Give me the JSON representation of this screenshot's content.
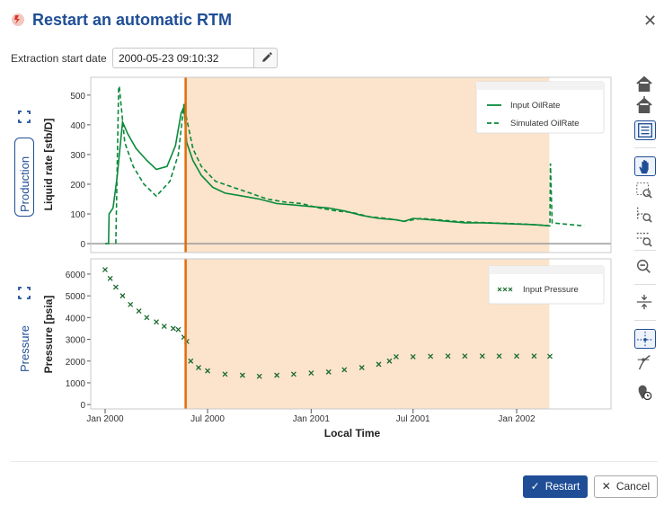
{
  "dialog": {
    "title": "Restart an automatic RTM",
    "close_icon": "close-icon",
    "logo_icon": "rtm-logo-icon"
  },
  "extraction": {
    "label": "Extraction start date",
    "value": "2000-05-23 09:10:32",
    "edit_icon": "pencil-icon"
  },
  "panels": {
    "production_label": "Production",
    "pressure_label": "Pressure"
  },
  "toolbar": [
    {
      "icon": "home-icon"
    },
    {
      "icon": "home-alt-icon"
    },
    {
      "icon": "legend-icon",
      "active": true
    },
    {
      "icon": "pan-hand-icon",
      "active": true
    },
    {
      "icon": "zoom-box-icon"
    },
    {
      "icon": "zoom-x-icon"
    },
    {
      "icon": "zoom-y-icon"
    },
    {
      "icon": "zoom-out-icon"
    },
    {
      "icon": "vertical-spread-icon"
    },
    {
      "icon": "crosshair-icon",
      "active": true
    },
    {
      "icon": "tangent-icon"
    },
    {
      "icon": "pin-clock-icon"
    }
  ],
  "footer": {
    "restart_label": "Restart",
    "cancel_label": "Cancel"
  },
  "colors": {
    "accent": "#1f4e96",
    "series_green": "#0a8a3a",
    "series_dark_green": "#1a6b2e",
    "marker_orange": "#e36c0a",
    "shade": "#fbe3cc"
  },
  "chart_data": [
    {
      "type": "line",
      "ylabel": "Liquid rate [stb/D]",
      "ylim": [
        -30,
        560
      ],
      "yticks": [
        "0",
        "100",
        "200",
        "300",
        "400",
        "500"
      ],
      "ytick_values": [
        0,
        100,
        200,
        300,
        400,
        500
      ],
      "legend": "top-right",
      "series": [
        {
          "name": "Input OilRate",
          "style": "solid",
          "x": [
            "2000-01-01",
            "2000-01-07",
            "2000-01-08",
            "2000-01-15",
            "2000-01-22",
            "2000-02-01",
            "2000-02-10",
            "2000-02-25",
            "2000-03-15",
            "2000-04-01",
            "2000-04-20",
            "2000-05-05",
            "2000-05-15",
            "2000-05-20",
            "2000-05-25",
            "2000-06-05",
            "2000-06-20",
            "2000-07-10",
            "2000-08-01",
            "2000-09-01",
            "2000-10-01",
            "2000-11-01",
            "2000-12-01",
            "2001-01-01",
            "2001-02-01",
            "2001-03-01",
            "2001-04-01",
            "2001-05-01",
            "2001-06-01",
            "2001-06-15",
            "2001-07-01",
            "2001-08-01",
            "2001-09-01",
            "2001-10-01",
            "2001-11-01",
            "2001-12-01",
            "2002-01-01",
            "2002-02-01",
            "2002-03-01"
          ],
          "values": [
            0,
            0,
            100,
            120,
            220,
            410,
            370,
            320,
            280,
            250,
            260,
            330,
            440,
            460,
            340,
            280,
            230,
            190,
            170,
            160,
            150,
            135,
            130,
            125,
            120,
            110,
            95,
            85,
            80,
            75,
            85,
            80,
            75,
            70,
            70,
            68,
            66,
            64,
            60
          ]
        },
        {
          "name": "Simulated OilRate",
          "style": "dashed",
          "x": [
            "2000-01-20",
            "2000-01-25",
            "2000-01-26",
            "2000-02-05",
            "2000-02-20",
            "2000-03-10",
            "2000-04-01",
            "2000-04-25",
            "2000-05-10",
            "2000-05-20",
            "2000-05-25",
            "2000-06-05",
            "2000-06-20",
            "2000-07-15",
            "2000-08-15",
            "2000-09-15",
            "2000-10-15",
            "2000-11-15",
            "2000-12-15",
            "2001-01-15",
            "2001-02-15",
            "2001-03-15",
            "2001-04-15",
            "2001-05-15",
            "2001-06-01",
            "2001-06-15",
            "2001-07-15",
            "2001-08-15",
            "2001-09-15",
            "2001-10-15",
            "2001-11-15",
            "2001-12-15",
            "2002-01-15",
            "2002-02-15",
            "2002-03-01",
            "2002-03-02",
            "2002-03-05",
            "2002-04-01",
            "2002-05-01"
          ],
          "values": [
            0,
            520,
            530,
            340,
            260,
            200,
            160,
            210,
            300,
            470,
            420,
            320,
            260,
            210,
            190,
            170,
            150,
            140,
            135,
            120,
            110,
            105,
            90,
            85,
            80,
            75,
            85,
            80,
            75,
            72,
            70,
            68,
            66,
            62,
            60,
            270,
            70,
            65,
            60
          ]
        }
      ]
    },
    {
      "type": "scatter",
      "ylabel": "Pressure [psia]",
      "xlabel": "Local Time",
      "ylim": [
        -200,
        6700
      ],
      "yticks": [
        "0",
        "1000",
        "2000",
        "3000",
        "4000",
        "5000",
        "6000"
      ],
      "ytick_values": [
        0,
        1000,
        2000,
        3000,
        4000,
        5000,
        6000
      ],
      "xticks": [
        "Jan 2000",
        "Jul 2000",
        "Jan 2001",
        "Jul 2001",
        "Jan 2002"
      ],
      "xtick_values": [
        "2000-01-01",
        "2000-07-01",
        "2001-01-01",
        "2001-07-01",
        "2002-01-01"
      ],
      "legend": "top-right",
      "series": [
        {
          "name": "Input Pressure",
          "marker": "x",
          "x": [
            "2000-01-01",
            "2000-01-10",
            "2000-01-20",
            "2000-02-01",
            "2000-02-15",
            "2000-03-01",
            "2000-03-15",
            "2000-04-01",
            "2000-04-15",
            "2000-05-01",
            "2000-05-10",
            "2000-05-20",
            "2000-05-25",
            "2000-06-01",
            "2000-06-15",
            "2000-07-01",
            "2000-08-01",
            "2000-09-01",
            "2000-10-01",
            "2000-11-01",
            "2000-12-01",
            "2001-01-01",
            "2001-02-01",
            "2001-03-01",
            "2001-04-01",
            "2001-05-01",
            "2001-05-20",
            "2001-06-01",
            "2001-07-01",
            "2001-08-01",
            "2001-09-01",
            "2001-10-01",
            "2001-11-01",
            "2001-12-01",
            "2002-01-01",
            "2002-02-01",
            "2002-03-01"
          ],
          "values": [
            6200,
            5800,
            5400,
            5000,
            4600,
            4300,
            4000,
            3800,
            3600,
            3500,
            3450,
            3100,
            2900,
            2000,
            1700,
            1550,
            1400,
            1350,
            1300,
            1350,
            1400,
            1450,
            1500,
            1600,
            1700,
            1850,
            2000,
            2200,
            2200,
            2220,
            2230,
            2230,
            2230,
            2230,
            2230,
            2230,
            2220
          ]
        }
      ]
    }
  ]
}
